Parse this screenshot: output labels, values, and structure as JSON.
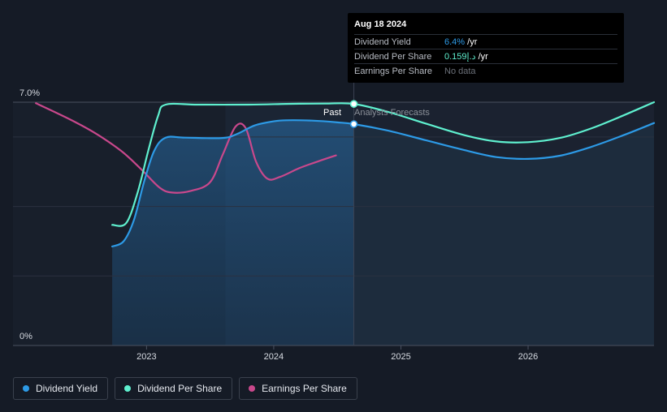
{
  "tooltip": {
    "date": "Aug 18 2024",
    "rows": [
      {
        "label": "Dividend Yield",
        "value": "6.4%",
        "unit": " /yr",
        "color": "#2d9ae6"
      },
      {
        "label": "Dividend Per Share",
        "value": "0.159د.إ",
        "unit": " /yr",
        "color": "#5ff0cf"
      },
      {
        "label": "Earnings Per Share",
        "value": "No data",
        "unit": "",
        "color": "#6b7079"
      }
    ]
  },
  "regions": {
    "past": "Past",
    "forecast": "Analysts Forecasts"
  },
  "chart_data": {
    "type": "line",
    "y_tick_labels": [
      "7.0%",
      "0%"
    ],
    "ylim": [
      0,
      7.0
    ],
    "x_ticks": [
      {
        "label": "2023",
        "x": 2023.0
      },
      {
        "label": "2024",
        "x": 2024.0
      },
      {
        "label": "2025",
        "x": 2025.0
      },
      {
        "label": "2026",
        "x": 2026.0
      }
    ],
    "xlim": [
      2021.95,
      2026.99
    ],
    "past_end": 2024.63,
    "shaded_start": 2022.73,
    "series": [
      {
        "name": "Dividend Yield",
        "color": "#2d9ae6",
        "points": [
          [
            2022.73,
            2.85
          ],
          [
            2022.82,
            3.0
          ],
          [
            2022.9,
            3.6
          ],
          [
            2022.98,
            4.7
          ],
          [
            2023.06,
            5.6
          ],
          [
            2023.15,
            5.98
          ],
          [
            2023.3,
            5.98
          ],
          [
            2023.6,
            5.97
          ],
          [
            2023.72,
            6.1
          ],
          [
            2023.85,
            6.33
          ],
          [
            2024.0,
            6.45
          ],
          [
            2024.1,
            6.48
          ],
          [
            2024.3,
            6.47
          ],
          [
            2024.5,
            6.42
          ],
          [
            2024.63,
            6.37
          ],
          [
            2024.9,
            6.18
          ],
          [
            2025.2,
            5.9
          ],
          [
            2025.5,
            5.62
          ],
          [
            2025.75,
            5.42
          ],
          [
            2026.0,
            5.37
          ],
          [
            2026.25,
            5.46
          ],
          [
            2026.5,
            5.72
          ],
          [
            2026.75,
            6.05
          ],
          [
            2026.99,
            6.4
          ]
        ]
      },
      {
        "name": "Dividend Per Share",
        "color": "#5ff0cf",
        "points": [
          [
            2022.73,
            3.47
          ],
          [
            2022.84,
            3.52
          ],
          [
            2022.93,
            4.4
          ],
          [
            2023.01,
            5.55
          ],
          [
            2023.09,
            6.6
          ],
          [
            2023.15,
            6.93
          ],
          [
            2023.4,
            6.93
          ],
          [
            2023.8,
            6.93
          ],
          [
            2024.1,
            6.95
          ],
          [
            2024.4,
            6.96
          ],
          [
            2024.63,
            6.95
          ],
          [
            2024.9,
            6.72
          ],
          [
            2025.2,
            6.38
          ],
          [
            2025.5,
            6.05
          ],
          [
            2025.75,
            5.87
          ],
          [
            2026.0,
            5.85
          ],
          [
            2026.25,
            5.97
          ],
          [
            2026.5,
            6.25
          ],
          [
            2026.75,
            6.62
          ],
          [
            2026.99,
            7.0
          ]
        ]
      },
      {
        "name": "Earnings Per Share",
        "color": "#c9488c",
        "points": [
          [
            2022.13,
            6.97
          ],
          [
            2022.4,
            6.5
          ],
          [
            2022.6,
            6.1
          ],
          [
            2022.8,
            5.6
          ],
          [
            2022.95,
            5.1
          ],
          [
            2023.1,
            4.55
          ],
          [
            2023.2,
            4.4
          ],
          [
            2023.35,
            4.45
          ],
          [
            2023.5,
            4.7
          ],
          [
            2023.6,
            5.5
          ],
          [
            2023.7,
            6.3
          ],
          [
            2023.78,
            6.25
          ],
          [
            2023.86,
            5.3
          ],
          [
            2023.95,
            4.8
          ],
          [
            2024.05,
            4.85
          ],
          [
            2024.2,
            5.1
          ],
          [
            2024.35,
            5.3
          ],
          [
            2024.49,
            5.47
          ]
        ]
      }
    ]
  },
  "legend": [
    {
      "label": "Dividend Yield",
      "color": "#2d9ae6"
    },
    {
      "label": "Dividend Per Share",
      "color": "#5ff0cf"
    },
    {
      "label": "Earnings Per Share",
      "color": "#c9488c"
    }
  ]
}
